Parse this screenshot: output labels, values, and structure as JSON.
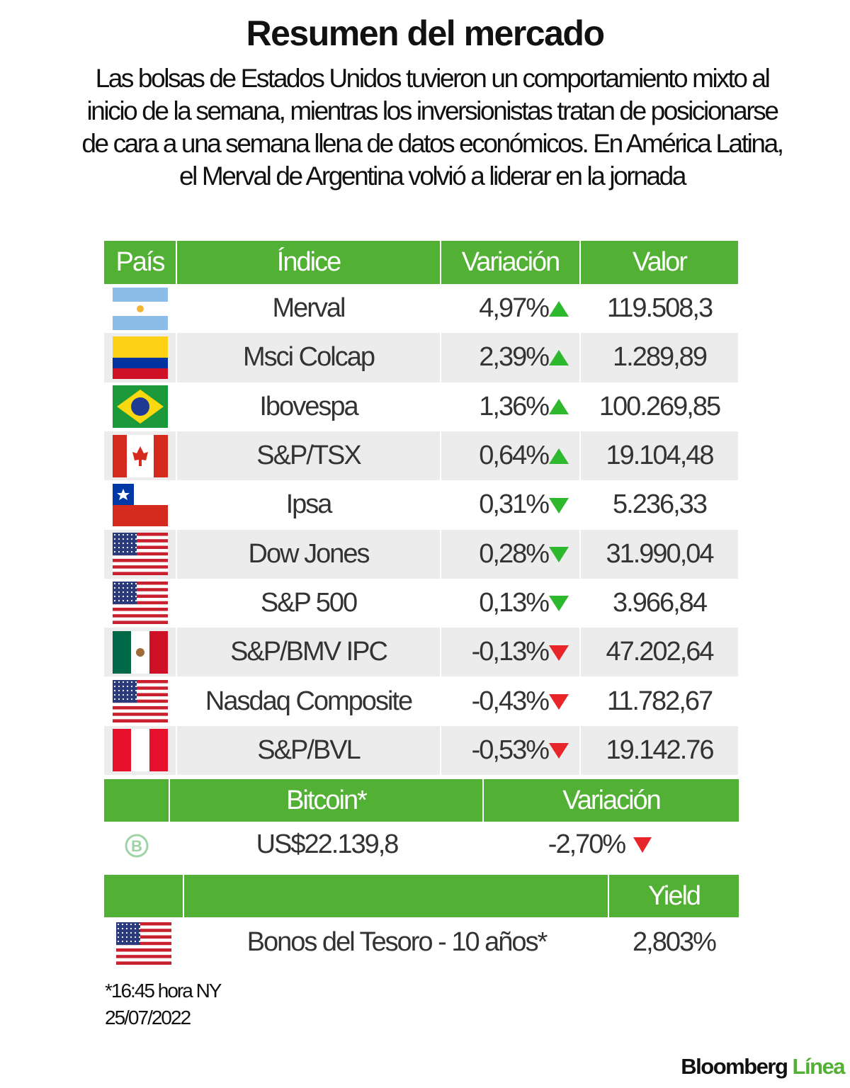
{
  "header": {
    "title": "Resumen del mercado",
    "subtitle": "Las bolsas de Estados Unidos tuvieron un comportamiento mixto al inicio de la semana, mientras los inversionistas tratan de posicionarse de cara a una semana llena de datos económicos. En América Latina, el Merval de Argentina volvió a liderar en la jornada"
  },
  "table": {
    "columns": [
      "País",
      "Índice",
      "Variación",
      "Valor"
    ],
    "rows": [
      {
        "index": "Merval",
        "variation": "4,97%",
        "value": "119.508,3"
      },
      {
        "index": "Msci Colcap",
        "variation": "2,39%",
        "value": "1.289,89"
      },
      {
        "index": "Ibovespa",
        "variation": "1,36%",
        "value": "100.269,85"
      },
      {
        "index": "S&P/TSX",
        "variation": "0,64%",
        "value": "19.104,48"
      },
      {
        "index": "Ipsa",
        "variation": "0,31%",
        "value": "5.236,33"
      },
      {
        "index": "Dow Jones",
        "variation": "0,28%",
        "value": "31.990,04"
      },
      {
        "index": "S&P 500",
        "variation": "0,13%",
        "value": "3.966,84"
      },
      {
        "index": "S&P/BMV IPC",
        "variation": "-0,13%",
        "value": "47.202,64"
      },
      {
        "index": "Nasdaq Composite",
        "variation": "-0,43%",
        "value": "11.782,67"
      },
      {
        "index": "S&P/BVL",
        "variation": "-0,53%",
        "value": "19.142.76"
      }
    ]
  },
  "bitcoin": {
    "columns": [
      "Bitcoin*",
      "Variación"
    ],
    "value": "US$22.139,8",
    "variation": "-2,70%"
  },
  "bonds": {
    "column": "Yield",
    "name": "Bonos del Tesoro - 10 años*",
    "yield": "2,803%"
  },
  "footnote": [
    "*16:45 hora NY",
    "25/07/2022"
  ],
  "logo": {
    "brand": "Bloomberg",
    "product": "Línea"
  }
}
